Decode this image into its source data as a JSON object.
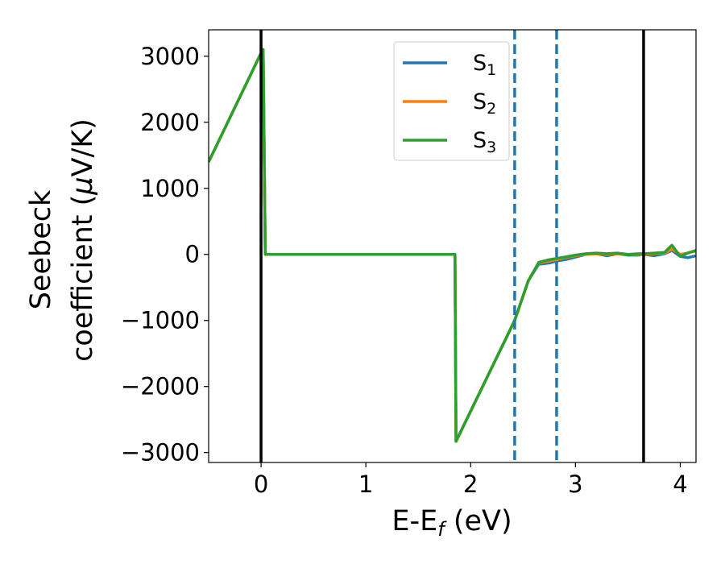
{
  "chart_data": {
    "type": "line",
    "title": "",
    "xlabel": {
      "main": "E-E",
      "sub": "f",
      "unit": " (eV)"
    },
    "ylabel": {
      "line1": "Seebeck",
      "line2_pre": "coefficient  (",
      "line2_mu": "μ",
      "line2_post": "V/K)"
    },
    "xlim": [
      -0.5,
      4.15
    ],
    "ylim": [
      -3150,
      3400
    ],
    "xticks": [
      {
        "value": 0,
        "label": "0"
      },
      {
        "value": 1,
        "label": "1"
      },
      {
        "value": 2,
        "label": "2"
      },
      {
        "value": 3,
        "label": "3"
      },
      {
        "value": 4,
        "label": "4"
      }
    ],
    "yticks": [
      {
        "value": 3000,
        "label": "3000"
      },
      {
        "value": 2000,
        "label": "2000"
      },
      {
        "value": 1000,
        "label": "1000"
      },
      {
        "value": 0,
        "label": "0"
      },
      {
        "value": -1000,
        "label": "−1000"
      },
      {
        "value": -2000,
        "label": "−2000"
      },
      {
        "value": -3000,
        "label": "−3000"
      }
    ],
    "grid": false,
    "legend": {
      "placement": "top-center"
    },
    "vlines": [
      {
        "x": 0,
        "style": "solid",
        "color": "#000000"
      },
      {
        "x": 3.65,
        "style": "solid",
        "color": "#000000"
      },
      {
        "x": 2.42,
        "style": "dashed",
        "color": "#1f77b4"
      },
      {
        "x": 2.82,
        "style": "dashed",
        "color": "#1f77b4"
      }
    ],
    "series": [
      {
        "name": "S",
        "sub": "1",
        "color": "#1f77b4",
        "x": [
          -0.5,
          0.0,
          0.02,
          0.04,
          1.85,
          1.86,
          2.42,
          2.55,
          2.65,
          2.75,
          2.82,
          2.9,
          3.0,
          3.1,
          3.2,
          3.3,
          3.4,
          3.5,
          3.6,
          3.65,
          3.75,
          3.85,
          3.92,
          4.0,
          4.07,
          4.15
        ],
        "y": [
          1400,
          3050,
          3100,
          0,
          0,
          -2830,
          -1000,
          -400,
          -150,
          -130,
          -100,
          -80,
          -40,
          0,
          10,
          -20,
          10,
          -10,
          -10,
          0,
          -20,
          10,
          60,
          -30,
          -50,
          -20
        ]
      },
      {
        "name": "S",
        "sub": "2",
        "color": "#ff7f0e",
        "x": [
          -0.5,
          0.0,
          0.02,
          0.04,
          1.85,
          1.86,
          2.42,
          2.55,
          2.65,
          2.75,
          2.82,
          2.9,
          3.0,
          3.1,
          3.2,
          3.3,
          3.4,
          3.5,
          3.6,
          3.65,
          3.75,
          3.85,
          3.92,
          4.0,
          4.07,
          4.15
        ],
        "y": [
          1400,
          3050,
          3100,
          0,
          0,
          -2830,
          -1000,
          -400,
          -130,
          -100,
          -80,
          -50,
          -20,
          0,
          10,
          0,
          10,
          0,
          0,
          0,
          10,
          20,
          80,
          0,
          20,
          50
        ]
      },
      {
        "name": "S",
        "sub": "3",
        "color": "#2ca02c",
        "x": [
          -0.5,
          0.0,
          0.02,
          0.04,
          1.85,
          1.86,
          2.42,
          2.55,
          2.65,
          2.75,
          2.82,
          2.9,
          3.0,
          3.1,
          3.2,
          3.3,
          3.4,
          3.5,
          3.6,
          3.65,
          3.75,
          3.85,
          3.92,
          4.0,
          4.07,
          4.15
        ],
        "y": [
          1400,
          3050,
          3100,
          0,
          0,
          -2830,
          -1000,
          -400,
          -120,
          -80,
          -60,
          -40,
          -10,
          10,
          20,
          10,
          20,
          0,
          10,
          10,
          20,
          30,
          140,
          -30,
          20,
          60
        ]
      }
    ]
  }
}
